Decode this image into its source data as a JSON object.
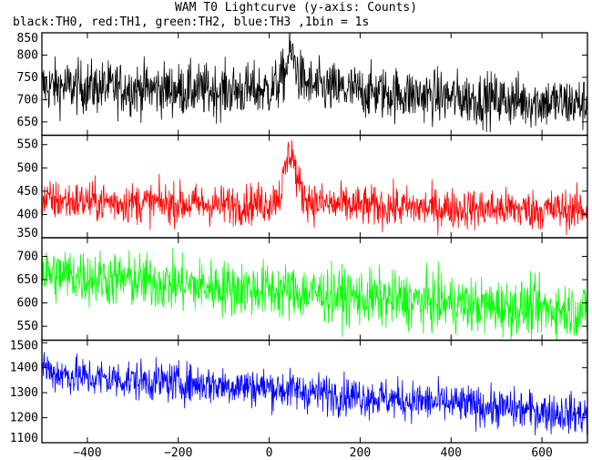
{
  "chart_data": {
    "type": "line",
    "title": "WAM T0 Lightcurve (y-axis: Counts)",
    "subtitle": "black:TH0, red:TH1, green:TH2, blue:TH3 ,1bin = 1s",
    "x_range": [
      -500,
      700
    ],
    "x_ticks": [
      -400,
      -200,
      0,
      200,
      400,
      600
    ],
    "x_tick_labels": [
      "−400",
      "−200",
      "0",
      "200",
      "400",
      "600"
    ],
    "panels": [
      {
        "series_name": "TH0",
        "color": "#000000",
        "ylim": [
          620,
          850
        ],
        "y_ticks": [
          650,
          700,
          750,
          800,
          850
        ],
        "x": [
          -500,
          -400,
          -300,
          -200,
          -100,
          0,
          20,
          35,
          45,
          55,
          65,
          80,
          100,
          200,
          300,
          400,
          500,
          600,
          700
        ],
        "y": [
          730,
          728,
          725,
          722,
          720,
          722,
          735,
          760,
          805,
          790,
          755,
          735,
          728,
          718,
          712,
          705,
          700,
          695,
          690
        ],
        "noise": 30
      },
      {
        "series_name": "TH1",
        "color": "#ff0000",
        "ylim": [
          350,
          570
        ],
        "y_ticks": [
          350,
          400,
          450,
          500,
          550
        ],
        "x": [
          -500,
          -400,
          -300,
          -200,
          -100,
          0,
          25,
          40,
          50,
          60,
          75,
          100,
          150,
          200,
          300,
          400,
          500,
          600,
          700
        ],
        "y": [
          430,
          428,
          425,
          423,
          420,
          425,
          445,
          520,
          540,
          480,
          440,
          425,
          420,
          418,
          415,
          413,
          412,
          410,
          410
        ],
        "noise": 22
      },
      {
        "series_name": "TH2",
        "color": "#00ff00",
        "ylim": [
          520,
          740
        ],
        "y_ticks": [
          550,
          600,
          650,
          700
        ],
        "x": [
          -500,
          -400,
          -300,
          -200,
          -100,
          0,
          100,
          200,
          300,
          400,
          500,
          600,
          700
        ],
        "y": [
          665,
          655,
          648,
          640,
          632,
          628,
          620,
          612,
          605,
          598,
          592,
          588,
          584
        ],
        "noise": 30
      },
      {
        "series_name": "TH3",
        "color": "#0000ff",
        "ylim": [
          1100,
          1510
        ],
        "y_ticks": [
          1100,
          1200,
          1300,
          1400,
          1500
        ],
        "x": [
          -500,
          -480,
          -400,
          -300,
          -200,
          -100,
          0,
          100,
          200,
          300,
          400,
          500,
          600,
          700
        ],
        "y": [
          1420,
          1380,
          1360,
          1350,
          1340,
          1330,
          1320,
          1300,
          1285,
          1270,
          1255,
          1240,
          1225,
          1210
        ],
        "noise": 40
      }
    ],
    "grid": false,
    "legend": "none"
  }
}
